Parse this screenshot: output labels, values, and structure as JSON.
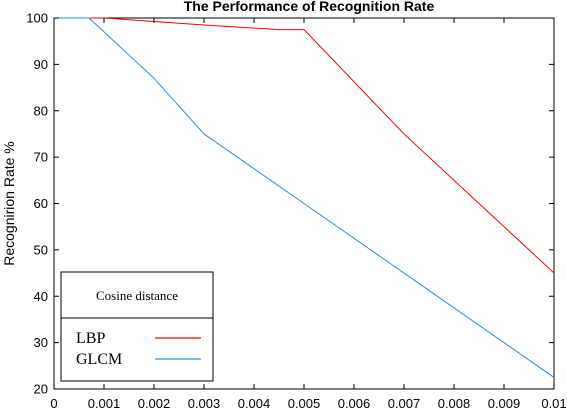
{
  "chart_data": {
    "type": "line",
    "title": "The Performance of Recognition Rate",
    "xlabel": "",
    "ylabel": "Recognirion Rate %",
    "xlim": [
      0,
      0.01
    ],
    "ylim": [
      20,
      100
    ],
    "x_ticks": [
      0,
      0.001,
      0.002,
      0.003,
      0.004,
      0.005,
      0.006,
      0.007,
      0.008,
      0.009,
      0.01
    ],
    "x_tick_labels": [
      "0",
      "0.001",
      "0.002",
      "0.003",
      "0.004",
      "0.005",
      "0.006",
      "0.007",
      "0.008",
      "0.009",
      "0.01"
    ],
    "y_ticks": [
      20,
      30,
      40,
      50,
      60,
      70,
      80,
      90,
      100
    ],
    "y_tick_labels": [
      "20",
      "30",
      "40",
      "50",
      "60",
      "70",
      "80",
      "90",
      "100"
    ],
    "grid": false,
    "legend": {
      "title": "Cosine distance",
      "placement": "bottom-left"
    },
    "series": [
      {
        "name": "LBP",
        "color": "#ff0000",
        "x": [
          0,
          0.001,
          0.003,
          0.0045,
          0.005,
          0.007,
          0.01
        ],
        "y": [
          100,
          100,
          98.5,
          97.5,
          97.5,
          75,
          45
        ]
      },
      {
        "name": "GLCM",
        "color": "#2f8fd8",
        "x": [
          0,
          0.0007,
          0.001,
          0.002,
          0.003,
          0.005,
          0.007,
          0.01
        ],
        "y": [
          100,
          100,
          97,
          87,
          75,
          60,
          45,
          22.5
        ]
      }
    ]
  }
}
